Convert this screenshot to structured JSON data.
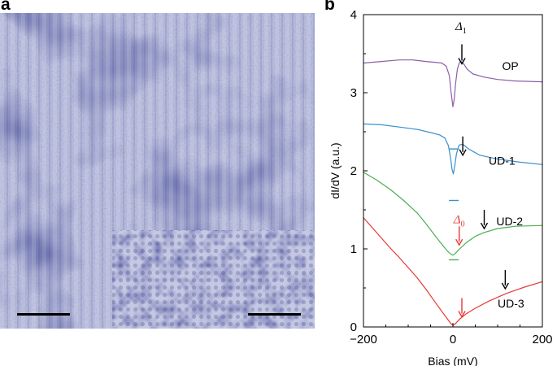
{
  "panels": {
    "a": "a",
    "b": "b"
  },
  "chart_data": {
    "type": "line",
    "xlabel": "Bias (mV)",
    "ylabel": "dI/dV (a.u.)",
    "xlim": [
      -200,
      200
    ],
    "ylim": [
      0,
      4
    ],
    "xticks": [
      "−200",
      "0",
      "200"
    ],
    "yticks": [
      "0",
      "1",
      "2",
      "3",
      "4"
    ],
    "series": [
      {
        "name": "OP",
        "color": "#8b5fa8",
        "points": [
          [
            -200,
            3.38
          ],
          [
            -160,
            3.4
          ],
          [
            -120,
            3.42
          ],
          [
            -90,
            3.42
          ],
          [
            -60,
            3.4
          ],
          [
            -40,
            3.39
          ],
          [
            -25,
            3.38
          ],
          [
            -15,
            3.34
          ],
          [
            -8,
            3.22
          ],
          [
            -4,
            3.0
          ],
          [
            0,
            2.82
          ],
          [
            3,
            2.92
          ],
          [
            6,
            3.12
          ],
          [
            10,
            3.3
          ],
          [
            14,
            3.38
          ],
          [
            18,
            3.4
          ],
          [
            24,
            3.37
          ],
          [
            32,
            3.3
          ],
          [
            45,
            3.24
          ],
          [
            70,
            3.2
          ],
          [
            100,
            3.17
          ],
          [
            140,
            3.15
          ],
          [
            200,
            3.14
          ]
        ]
      },
      {
        "name": "UD-1",
        "color": "#3a8fcc",
        "points": [
          [
            -200,
            2.6
          ],
          [
            -160,
            2.59
          ],
          [
            -120,
            2.56
          ],
          [
            -80,
            2.53
          ],
          [
            -50,
            2.49
          ],
          [
            -30,
            2.46
          ],
          [
            -18,
            2.42
          ],
          [
            -10,
            2.32
          ],
          [
            -5,
            2.15
          ],
          [
            -2,
            2.02
          ],
          [
            1,
            1.96
          ],
          [
            4,
            2.06
          ],
          [
            8,
            2.22
          ],
          [
            14,
            2.33
          ],
          [
            22,
            2.34
          ],
          [
            35,
            2.28
          ],
          [
            60,
            2.2
          ],
          [
            100,
            2.15
          ],
          [
            150,
            2.11
          ],
          [
            200,
            2.08
          ]
        ]
      },
      {
        "name": "UD-2",
        "color": "#4caf50",
        "points": [
          [
            -200,
            1.98
          ],
          [
            -170,
            1.88
          ],
          [
            -140,
            1.76
          ],
          [
            -110,
            1.62
          ],
          [
            -80,
            1.46
          ],
          [
            -60,
            1.32
          ],
          [
            -40,
            1.17
          ],
          [
            -25,
            1.06
          ],
          [
            -12,
            0.97
          ],
          [
            -4,
            0.93
          ],
          [
            0,
            0.92
          ],
          [
            5,
            0.94
          ],
          [
            15,
            1.0
          ],
          [
            30,
            1.08
          ],
          [
            50,
            1.16
          ],
          [
            70,
            1.21
          ],
          [
            100,
            1.26
          ],
          [
            140,
            1.29
          ],
          [
            200,
            1.3
          ]
        ]
      },
      {
        "name": "UD-3",
        "color": "#e53935",
        "points": [
          [
            -200,
            1.4
          ],
          [
            -180,
            1.27
          ],
          [
            -160,
            1.14
          ],
          [
            -140,
            1.01
          ],
          [
            -120,
            0.89
          ],
          [
            -100,
            0.76
          ],
          [
            -80,
            0.63
          ],
          [
            -60,
            0.48
          ],
          [
            -40,
            0.32
          ],
          [
            -25,
            0.2
          ],
          [
            -12,
            0.1
          ],
          [
            -4,
            0.04
          ],
          [
            0,
            0.02
          ],
          [
            5,
            0.04
          ],
          [
            15,
            0.1
          ],
          [
            30,
            0.17
          ],
          [
            50,
            0.24
          ],
          [
            80,
            0.33
          ],
          [
            120,
            0.43
          ],
          [
            160,
            0.51
          ],
          [
            200,
            0.58
          ]
        ]
      }
    ],
    "curve_labels": [
      {
        "text": "OP",
        "x": 110,
        "y": 3.29
      },
      {
        "text": "UD-1",
        "x": 80,
        "y": 2.08
      },
      {
        "text": "UD-2",
        "x": 97,
        "y": 1.3
      },
      {
        "text": "UD-3",
        "x": 100,
        "y": 0.25
      }
    ],
    "arrows": [
      {
        "x": 20,
        "y": 3.62,
        "length": 0.25,
        "color": "#000000"
      },
      {
        "x": 22,
        "y": 2.44,
        "length": 0.24,
        "color": "#000000"
      },
      {
        "x": 70,
        "y": 1.5,
        "length": 0.24,
        "color": "#000000"
      },
      {
        "x": 117,
        "y": 0.73,
        "length": 0.24,
        "color": "#000000"
      },
      {
        "x": 14,
        "y": 1.29,
        "length": 0.24,
        "color": "#e53935"
      },
      {
        "x": 20,
        "y": 0.37,
        "length": 0.24,
        "color": "#e53935"
      }
    ],
    "zero_markers": [
      {
        "x": 2,
        "y": 2.28,
        "color": "#3a8fcc"
      },
      {
        "x": 2,
        "y": 1.62,
        "color": "#3a8fcc"
      },
      {
        "x": 2,
        "y": 0.86,
        "color": "#4caf50"
      }
    ],
    "gap_labels": [
      {
        "text": "Δ",
        "sub": "1",
        "x": 18,
        "y": 3.8,
        "color": "#000000"
      },
      {
        "text": "Δ",
        "sub": "0",
        "x": 14,
        "y": 1.33,
        "color": "#e53935"
      }
    ]
  }
}
